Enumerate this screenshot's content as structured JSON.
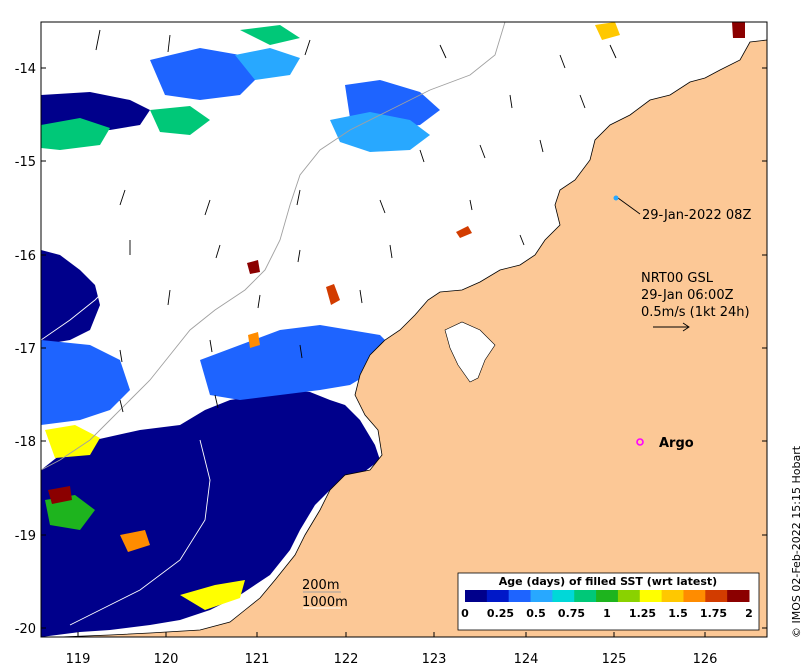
{
  "map": {
    "lon_ticks": [
      "119",
      "120",
      "121",
      "122",
      "123",
      "124",
      "125",
      "126"
    ],
    "lat_ticks": [
      "-14",
      "-15",
      "-16",
      "-17",
      "-18",
      "-19",
      "-20"
    ],
    "lon_range": [
      118.7,
      126.7
    ],
    "lat_range": [
      -20.1,
      -13.5
    ]
  },
  "annotations": {
    "track_label": "29-Jan-2022 08Z",
    "current_line1": "NRT00 GSL",
    "current_line2": "29-Jan 06:00Z",
    "current_line3": "0.5m/s (1kt 24h)",
    "argo_label": "Argo"
  },
  "isobaths": [
    "200m",
    "1000m"
  ],
  "colorbar": {
    "title": "Age (days) of filled SST (wrt latest)",
    "ticks": [
      "0",
      "0.25",
      "0.5",
      "0.75",
      "1",
      "1.25",
      "1.5",
      "1.75",
      "2"
    ],
    "colors": [
      "#00008b",
      "#0018c8",
      "#1e64ff",
      "#28a8ff",
      "#00d8d8",
      "#00c878",
      "#1eb41e",
      "#8ad200",
      "#ffff00",
      "#ffc800",
      "#ff8c00",
      "#d23c00",
      "#8b0000"
    ]
  },
  "credit": "© IMOS 02-Feb-2022 15:15 Hobart",
  "colors": {
    "land": "#fcc896",
    "sst_deep": "#00008b",
    "sst_blue": "#1e64ff",
    "sst_light": "#28a8ff",
    "sst_green": "#00c878",
    "sst_yellow": "#ffff00"
  }
}
